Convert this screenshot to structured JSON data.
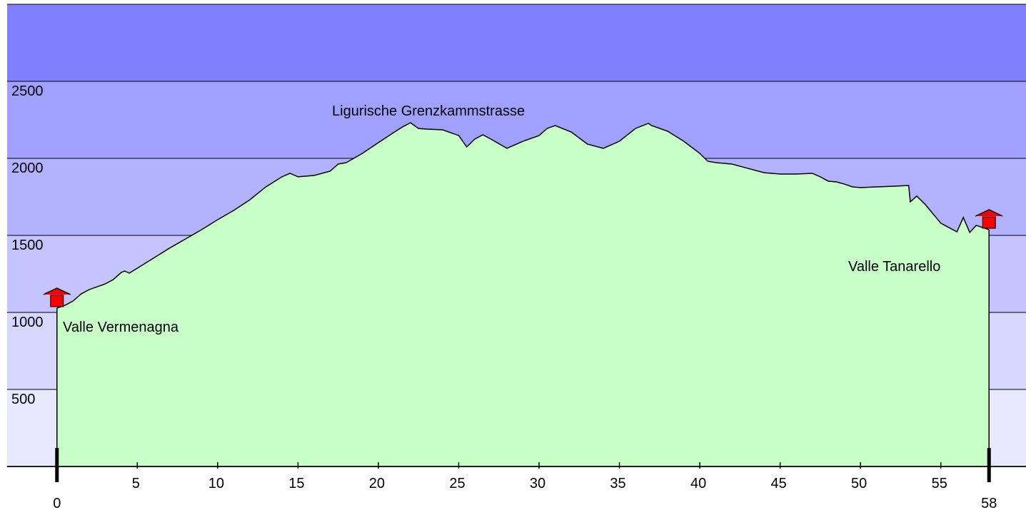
{
  "chart_data": {
    "type": "area",
    "x": [
      0,
      0.5,
      1,
      1.5,
      2,
      3,
      3.5,
      4,
      4.2,
      4.5,
      5,
      6,
      7,
      8,
      9,
      10,
      11,
      12,
      13,
      14,
      14.5,
      15,
      16,
      17,
      17.5,
      18,
      19,
      20,
      21,
      21.5,
      22,
      22.5,
      23,
      24,
      25,
      25.5,
      26,
      26.5,
      27,
      28,
      29,
      30,
      30.5,
      31,
      32,
      33,
      34,
      35,
      36,
      36.8,
      37,
      38,
      39,
      40,
      40.5,
      41,
      42,
      43,
      44,
      45,
      46,
      47,
      47.5,
      48,
      48.5,
      49,
      49.5,
      50,
      51,
      52,
      53,
      53.1,
      53.5,
      54,
      55,
      56,
      56.4,
      56.8,
      57.2,
      58
    ],
    "values": [
      1028,
      1046,
      1074,
      1120,
      1148,
      1185,
      1213,
      1259,
      1269,
      1255,
      1287,
      1352,
      1417,
      1477,
      1537,
      1602,
      1662,
      1731,
      1815,
      1880,
      1903,
      1880,
      1889,
      1917,
      1963,
      1972,
      2032,
      2102,
      2171,
      2204,
      2231,
      2194,
      2190,
      2185,
      2148,
      2074,
      2125,
      2153,
      2125,
      2065,
      2111,
      2148,
      2194,
      2213,
      2171,
      2093,
      2065,
      2111,
      2194,
      2227,
      2213,
      2176,
      2111,
      2032,
      1981,
      1972,
      1963,
      1935,
      1907,
      1898,
      1898,
      1903,
      1880,
      1852,
      1847,
      1833,
      1815,
      1810,
      1815,
      1819,
      1824,
      1718,
      1755,
      1704,
      1579,
      1523,
      1616,
      1519,
      1565,
      1537
    ],
    "color": "#c8ffc8",
    "xlim": [
      -3.1,
      60.3
    ],
    "ylim": [
      0,
      3000
    ],
    "xticks": [
      5,
      10,
      15,
      20,
      25,
      30,
      35,
      40,
      45,
      50,
      55
    ],
    "yticks": [
      0,
      500,
      1000,
      1500,
      2000,
      2500
    ],
    "markers": [
      0,
      58
    ],
    "band_colors": [
      "#e8e8ff",
      "#d6d6ff",
      "#c4c4ff",
      "#b2b2ff",
      "#a0a0ff",
      "#8080ff"
    ],
    "annotations": [
      "Ligurische Grenzkammstrasse",
      "Valle Vermenagna",
      "Valle Tanarello"
    ]
  }
}
